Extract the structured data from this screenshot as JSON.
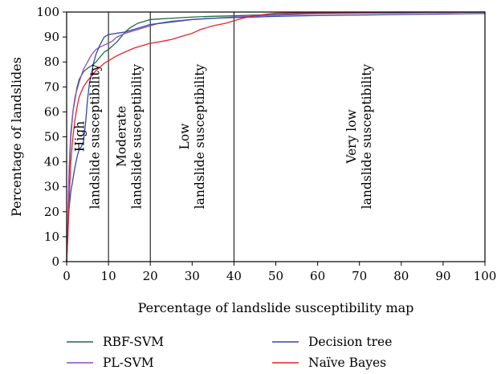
{
  "chart_data": {
    "type": "line",
    "xlabel": "Percentage of landslide susceptibility map",
    "ylabel": "Percentage of landslides",
    "xlim": [
      0,
      100
    ],
    "ylim": [
      0,
      100
    ],
    "x_ticks": [
      0,
      10,
      20,
      30,
      40,
      50,
      60,
      70,
      80,
      90,
      100
    ],
    "y_ticks": [
      0,
      10,
      20,
      30,
      40,
      50,
      60,
      70,
      80,
      90,
      100
    ],
    "grid": false,
    "legend_position": "bottom",
    "zones": [
      {
        "boundary": 10,
        "lines": [
          "High",
          "landslide susceptibility"
        ],
        "anchor_x": 5
      },
      {
        "boundary": 20,
        "lines": [
          "Moderate",
          "landslide susceptibility"
        ],
        "anchor_x": 15
      },
      {
        "boundary": 40,
        "lines": [
          "Low",
          "landslide susceptibility"
        ],
        "anchor_x": 30
      },
      {
        "lines": [
          "Very low",
          "landslide susceptibility"
        ],
        "anchor_x": 70
      }
    ],
    "series": [
      {
        "name": "RBF-SVM",
        "color": "#1e6b47",
        "x": [
          0,
          0.3,
          0.6,
          1,
          1.5,
          2,
          2.5,
          3,
          4,
          5,
          6,
          7,
          8,
          9,
          10,
          11,
          12,
          13,
          14,
          15,
          16,
          17,
          18,
          19,
          20,
          22,
          25,
          30,
          35,
          40,
          45,
          50,
          55,
          60,
          70,
          80,
          90,
          100
        ],
        "y": [
          0,
          15,
          35,
          50,
          60,
          65,
          70,
          73,
          76,
          77.5,
          78.5,
          80,
          82,
          84,
          85,
          86.5,
          88,
          90,
          92,
          93.5,
          94.5,
          95.5,
          96,
          96.5,
          97,
          97.2,
          97.5,
          98,
          98.3,
          98.5,
          98.8,
          99,
          99.3,
          99.5,
          99.6,
          99.7,
          99.8,
          100
        ]
      },
      {
        "name": "PL-SVM",
        "color": "#8a4fbf",
        "x": [
          0,
          0.3,
          0.6,
          1,
          1.5,
          2,
          3,
          4,
          5,
          6,
          7,
          8,
          9,
          10,
          11,
          12,
          14,
          16,
          18,
          20,
          22,
          25,
          30,
          35,
          40,
          45,
          50,
          55,
          60,
          70,
          80,
          90,
          100
        ],
        "y": [
          0,
          18,
          38,
          52,
          60,
          66,
          72,
          77,
          80,
          83,
          85,
          86,
          86.8,
          87.5,
          88.5,
          90,
          91.5,
          92.5,
          93.5,
          94.5,
          95.5,
          96.3,
          97,
          97.5,
          98,
          98.4,
          98.8,
          99,
          99.3,
          99.5,
          99.6,
          99.8,
          100
        ]
      },
      {
        "name": "Decision tree",
        "color": "#3348a8",
        "x": [
          0,
          0.5,
          1,
          1.5,
          2,
          2.5,
          3,
          3.5,
          4,
          4.5,
          5,
          5.5,
          6,
          6.5,
          7,
          7.5,
          8,
          8.5,
          9,
          9.5,
          10,
          12,
          14,
          16,
          18,
          20,
          25,
          30,
          35,
          40,
          45,
          50,
          60,
          70,
          80,
          90,
          100
        ],
        "y": [
          0,
          20,
          28,
          33,
          38,
          42,
          45,
          46,
          48,
          55,
          65,
          72,
          76,
          80,
          83,
          85,
          87,
          88.5,
          90,
          90.5,
          91,
          91.5,
          92,
          93,
          94,
          95,
          96,
          97,
          97.5,
          97.8,
          98,
          98.3,
          98.6,
          98.8,
          99,
          99.2,
          99.4
        ]
      },
      {
        "name": "Naïve Bayes",
        "color": "#e8232a",
        "x": [
          0,
          0.3,
          0.6,
          1,
          1.5,
          2,
          2.5,
          3,
          4,
          5,
          6,
          7,
          8,
          9,
          10,
          12,
          14,
          16,
          18,
          20,
          22,
          25,
          28,
          30,
          32,
          35,
          38,
          40,
          42,
          45,
          48,
          50,
          55,
          60,
          70,
          80,
          90,
          100
        ],
        "y": [
          0,
          10,
          25,
          40,
          50,
          57,
          62,
          66,
          70,
          72.5,
          74.5,
          76.5,
          78,
          79.5,
          80.5,
          82.5,
          84,
          85.5,
          86.5,
          87.5,
          88,
          89,
          90.5,
          91.5,
          93,
          94.5,
          95.5,
          96.5,
          97.5,
          98.5,
          99.2,
          99.5,
          99.7,
          99.8,
          99.9,
          100,
          100,
          100
        ]
      }
    ]
  }
}
